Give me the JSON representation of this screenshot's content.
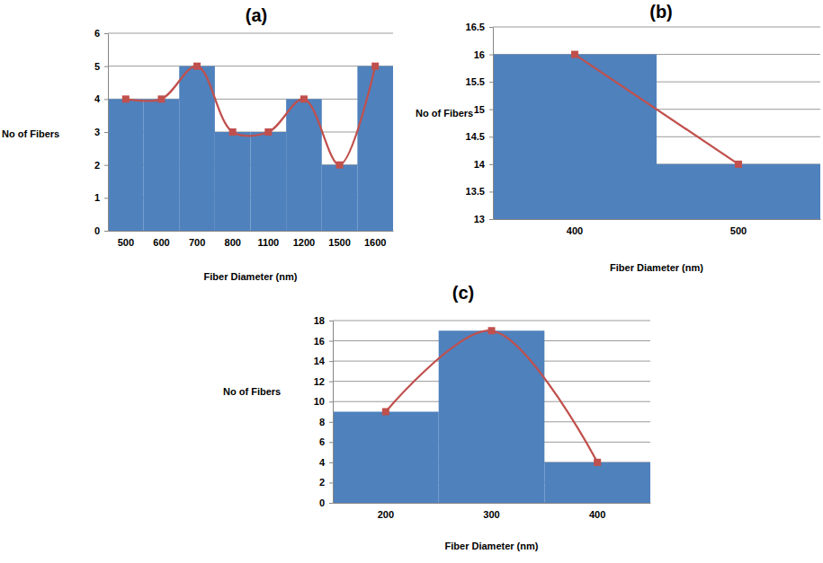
{
  "chart_data": [
    {
      "type": "bar",
      "title": "(a)",
      "x_label": "Fiber Diameter (nm)",
      "y_label": "No of Fibers",
      "categories": [
        "500",
        "600",
        "700",
        "800",
        "1100",
        "1200",
        "1500",
        "1600"
      ],
      "series": [
        {
          "type": "bar",
          "color": "#4f81bd",
          "values": [
            4,
            4,
            5,
            3,
            3,
            4,
            2,
            5
          ]
        },
        {
          "type": "line",
          "color": "#c0504d",
          "marker": "square",
          "line_style": "smooth",
          "values": [
            4,
            4,
            5,
            3,
            3,
            4,
            2,
            5
          ]
        }
      ],
      "ylim": [
        0,
        6
      ],
      "yticks": [
        0,
        1,
        2,
        3,
        4,
        5,
        6
      ],
      "grid": true
    },
    {
      "type": "bar",
      "title": "(b)",
      "x_label": "Fiber Diameter (nm)",
      "y_label": "No of Fibers",
      "categories": [
        "400",
        "500"
      ],
      "series": [
        {
          "type": "bar",
          "color": "#4f81bd",
          "values": [
            16,
            14
          ]
        },
        {
          "type": "line",
          "color": "#c0504d",
          "marker": "square",
          "line_style": "solid",
          "values": [
            16,
            14
          ]
        }
      ],
      "ylim": [
        13,
        16.5
      ],
      "yticks": [
        13,
        13.5,
        14,
        14.5,
        15,
        15.5,
        16,
        16.5
      ],
      "grid": true
    },
    {
      "type": "bar",
      "title": "(c)",
      "x_label": "Fiber Diameter (nm)",
      "y_label": "No of Fibers",
      "categories": [
        "200",
        "300",
        "400"
      ],
      "series": [
        {
          "type": "bar",
          "color": "#4f81bd",
          "values": [
            9,
            17,
            4
          ]
        },
        {
          "type": "line",
          "color": "#c0504d",
          "marker": "square",
          "line_style": "smooth",
          "values": [
            9,
            17,
            4
          ]
        }
      ],
      "ylim": [
        0,
        18
      ],
      "yticks": [
        0,
        2,
        4,
        6,
        8,
        10,
        12,
        14,
        16,
        18
      ],
      "grid": true
    }
  ]
}
